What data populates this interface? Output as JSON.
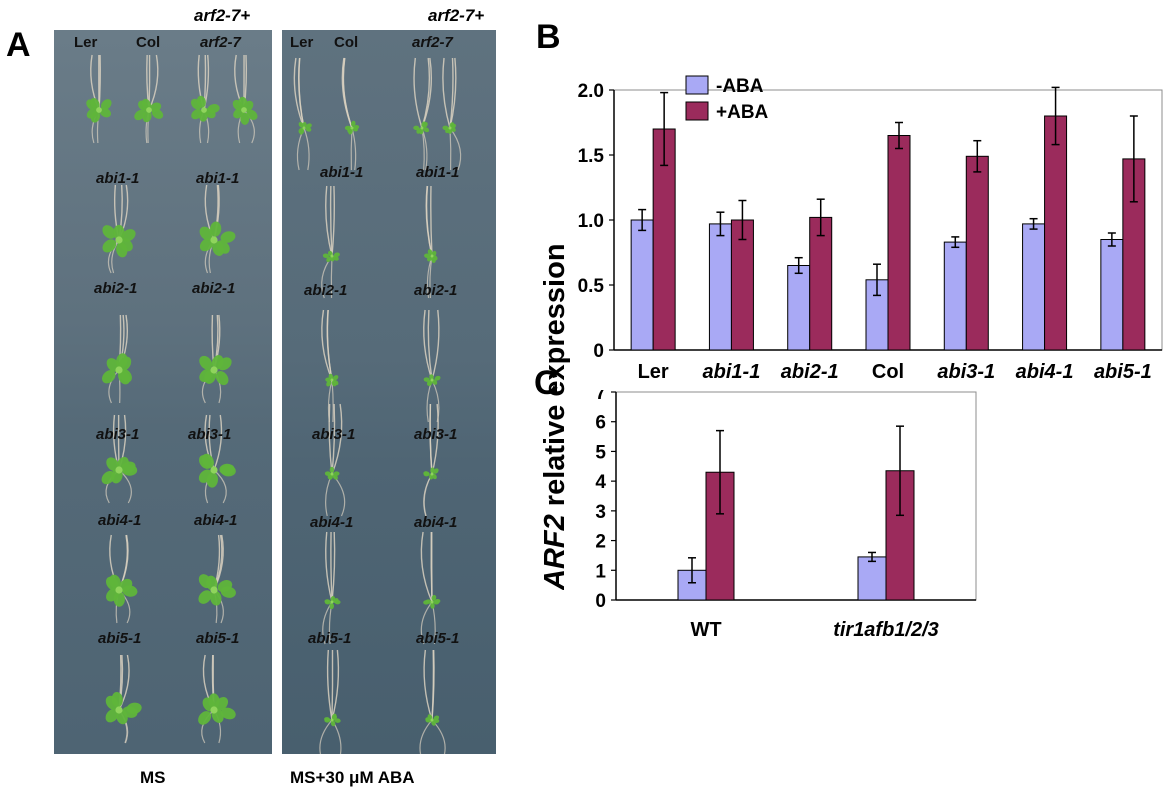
{
  "panels": {
    "a": {
      "letter": "A",
      "left_header": "arf2-7+",
      "right_header": "arf2-7+",
      "left_top_labels": [
        "Ler",
        "Col",
        "arf2-7"
      ],
      "right_top_labels": [
        "Ler",
        "Col",
        "arf2-7"
      ],
      "row_labels": [
        [
          "abi1-1",
          "abi1-1"
        ],
        [
          "abi2-1",
          "abi2-1"
        ],
        [
          "abi3-1",
          "abi3-1"
        ],
        [
          "abi4-1",
          "abi4-1"
        ],
        [
          "abi5-1",
          "abi5-1"
        ]
      ],
      "left_caption": "MS",
      "right_caption": "MS+30 μM ABA",
      "colors": {
        "plate": "#5b6e7b",
        "leaf": "#5fb53a",
        "root": "#d8d0c0"
      }
    },
    "b": {
      "letter": "B"
    },
    "c": {
      "letter": "C"
    }
  },
  "chart_data": [
    {
      "type": "bar",
      "panel": "B",
      "categories": [
        "Ler",
        "abi1-1",
        "abi2-1",
        "Col",
        "abi3-1",
        "abi4-1",
        "abi5-1"
      ],
      "series": [
        {
          "name": "-ABA",
          "values": [
            1.0,
            0.97,
            0.65,
            0.54,
            0.83,
            0.97,
            0.85
          ],
          "errors": [
            0.08,
            0.09,
            0.06,
            0.12,
            0.04,
            0.04,
            0.05
          ],
          "color": "#a9a9f5"
        },
        {
          "name": "+ABA",
          "values": [
            1.7,
            1.0,
            1.02,
            1.65,
            1.49,
            1.8,
            1.47
          ],
          "errors": [
            0.28,
            0.15,
            0.14,
            0.1,
            0.12,
            0.22,
            0.33
          ],
          "color": "#9b2b5c"
        }
      ],
      "ylabel": "ARF2 relative expression",
      "ylim": [
        0,
        2.0
      ],
      "yticks": [
        "0",
        "0.5",
        "1.0",
        "1.5",
        "2.0"
      ],
      "legend": "top-left"
    },
    {
      "type": "bar",
      "panel": "C",
      "categories": [
        "WT",
        "tir1afb1/2/3"
      ],
      "series": [
        {
          "name": "-ABA",
          "values": [
            1.0,
            1.45
          ],
          "errors": [
            0.42,
            0.15
          ],
          "color": "#a9a9f5"
        },
        {
          "name": "+ABA",
          "values": [
            4.3,
            4.35
          ],
          "errors": [
            1.4,
            1.5
          ],
          "color": "#9b2b5c"
        }
      ],
      "ylim": [
        0,
        7
      ],
      "yticks": [
        "0",
        "1",
        "2",
        "3",
        "4",
        "5",
        "6",
        "7"
      ]
    }
  ],
  "ylabel_parts": {
    "italic": "ARF2",
    "rest": " relative expression"
  }
}
